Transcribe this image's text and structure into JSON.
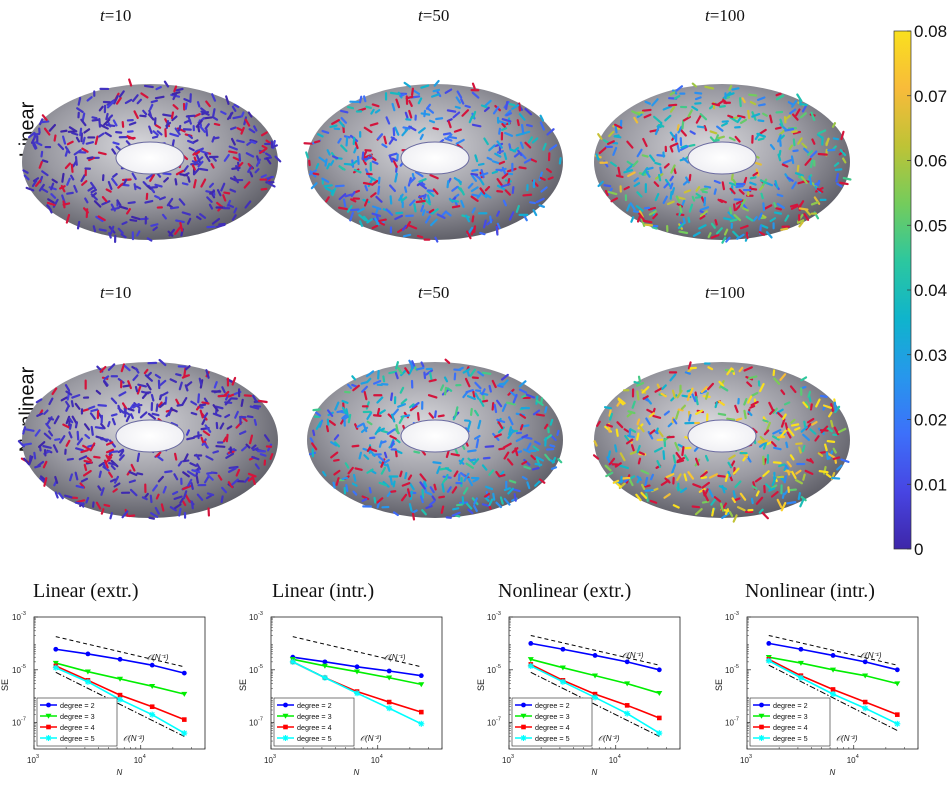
{
  "top_titles": [
    {
      "var": "t",
      "eq": "=",
      "val": "10"
    },
    {
      "var": "t",
      "eq": "=",
      "val": "50"
    },
    {
      "var": "t",
      "eq": "=",
      "val": "100"
    },
    {
      "var": "t",
      "eq": "=",
      "val": "10"
    },
    {
      "var": "t",
      "eq": "=",
      "val": "50"
    },
    {
      "var": "t",
      "eq": "=",
      "val": "100"
    }
  ],
  "row_labels": [
    "Linear",
    "Nonlinear"
  ],
  "colorbar": {
    "ticks": [
      "0",
      "0.01",
      "0.02",
      "0.03",
      "0.04",
      "0.05",
      "0.06",
      "0.07",
      "0.08"
    ],
    "range": [
      0,
      0.08
    ],
    "colormap": [
      "#3e26a8",
      "#4745e3",
      "#3d70fa",
      "#2797ec",
      "#0fb4cc",
      "#2cc79f",
      "#74cc5c",
      "#bec336",
      "#f8bb3a",
      "#f9e01e"
    ]
  },
  "tori": [
    {
      "panel": "Linear t=10",
      "level": 0.005
    },
    {
      "panel": "Linear t=50",
      "level": 0.03
    },
    {
      "panel": "Linear t=100",
      "level": 0.05
    },
    {
      "panel": "Nonlinear t=10",
      "level": 0.005
    },
    {
      "panel": "Nonlinear t=50",
      "level": 0.035
    },
    {
      "panel": "Nonlinear t=100",
      "level": 0.065
    }
  ],
  "chart_data": [
    {
      "type": "line",
      "title": "Linear (extr.)",
      "xlabel": "N",
      "ylabel": "SE",
      "xscale": "log",
      "yscale": "log",
      "xlim": [
        1000,
        40000
      ],
      "ylim": [
        1e-08,
        0.001
      ],
      "xticks": [
        "10",
        "10"
      ],
      "xtick_exp": [
        "3",
        "4"
      ],
      "yticks": [
        "10",
        "10",
        "10"
      ],
      "ytick_exp": [
        "-3",
        "-5",
        "-7"
      ],
      "x": [
        1600,
        3200,
        6400,
        12800,
        25600
      ],
      "series": [
        {
          "name": "degree = 2",
          "values": [
            6e-05,
            4e-05,
            2.5e-05,
            1.5e-05,
            7.5e-06
          ],
          "color": "#0000ff",
          "marker": "circle"
        },
        {
          "name": "degree = 3",
          "values": [
            1.8e-05,
            8.5e-06,
            4.5e-06,
            2.4e-06,
            1.2e-06
          ],
          "color": "#00ee00",
          "marker": "triangle-down"
        },
        {
          "name": "degree = 4",
          "values": [
            1.4e-05,
            4e-06,
            1.1e-06,
            4e-07,
            1.3e-07
          ],
          "color": "#ff0000",
          "marker": "square"
        },
        {
          "name": "degree = 5",
          "values": [
            1.2e-05,
            3.5e-06,
            7.5e-07,
            2e-07,
            4e-08
          ],
          "color": "#00ffff",
          "marker": "asterisk"
        }
      ],
      "reference": [
        {
          "label": "𝒪(N⁻¹)",
          "style": "dashed",
          "points": [
            [
              1600,
              0.00018
            ],
            [
              25600,
              1.3e-05
            ]
          ]
        },
        {
          "label": "𝒪(N⁻²)",
          "style": "dashdot",
          "points": [
            [
              1600,
              8e-06
            ],
            [
              25600,
              3e-08
            ]
          ]
        }
      ],
      "legend": "bottom-left"
    },
    {
      "type": "line",
      "title": "Linear (intr.)",
      "xlabel": "N",
      "ylabel": "SE",
      "xscale": "log",
      "yscale": "log",
      "xlim": [
        1000,
        40000
      ],
      "ylim": [
        1e-08,
        0.001
      ],
      "xticks": [
        "10",
        "10"
      ],
      "xtick_exp": [
        "3",
        "4"
      ],
      "yticks": [
        "10",
        "10",
        "10"
      ],
      "ytick_exp": [
        "-3",
        "-5",
        "-7"
      ],
      "x": [
        1600,
        3200,
        6400,
        12800,
        25600
      ],
      "series": [
        {
          "name": "degree = 2",
          "values": [
            3e-05,
            2e-05,
            1.3e-05,
            9e-06,
            6e-06
          ],
          "color": "#0000ff",
          "marker": "circle"
        },
        {
          "name": "degree = 3",
          "values": [
            2.5e-05,
            1.4e-05,
            8.5e-06,
            5e-06,
            2.8e-06
          ],
          "color": "#00ee00",
          "marker": "triangle-down"
        },
        {
          "name": "degree = 4",
          "values": [
            2e-05,
            5e-06,
            1.5e-06,
            6e-07,
            2.5e-07
          ],
          "color": "#ff0000",
          "marker": "square"
        },
        {
          "name": "degree = 5",
          "values": [
            2e-05,
            5e-06,
            1.3e-06,
            3.5e-07,
            9e-08
          ],
          "color": "#00ffff",
          "marker": "asterisk"
        }
      ],
      "reference": [
        {
          "label": "𝒪(N⁻¹)",
          "style": "dashed",
          "points": [
            [
              1600,
              0.00018
            ],
            [
              25600,
              1.3e-05
            ]
          ]
        },
        {
          "label": "𝒪(N⁻²)",
          "style": "dashdot",
          "points": [
            [
              1600,
              2e-05
            ],
            [
              25600,
              9e-08
            ]
          ]
        }
      ],
      "legend": "bottom-left"
    },
    {
      "type": "line",
      "title": "Nonlinear (extr.)",
      "xlabel": "N",
      "ylabel": "SE",
      "xscale": "log",
      "yscale": "log",
      "xlim": [
        1000,
        40000
      ],
      "ylim": [
        1e-08,
        0.001
      ],
      "xticks": [
        "10",
        "10"
      ],
      "xtick_exp": [
        "3",
        "4"
      ],
      "yticks": [
        "10",
        "10",
        "10"
      ],
      "ytick_exp": [
        "-3",
        "-5",
        "-7"
      ],
      "x": [
        1600,
        3200,
        6400,
        12800,
        25600
      ],
      "series": [
        {
          "name": "degree = 2",
          "values": [
            0.0001,
            6e-05,
            3.5e-05,
            2e-05,
            1e-05
          ],
          "color": "#0000ff",
          "marker": "circle"
        },
        {
          "name": "degree = 3",
          "values": [
            2.5e-05,
            1.2e-05,
            6e-06,
            3e-06,
            1.3e-06
          ],
          "color": "#00ee00",
          "marker": "triangle-down"
        },
        {
          "name": "degree = 4",
          "values": [
            1.6e-05,
            4e-06,
            1.2e-06,
            4.5e-07,
            1.5e-07
          ],
          "color": "#ff0000",
          "marker": "square"
        },
        {
          "name": "degree = 5",
          "values": [
            1.4e-05,
            3.5e-06,
            9e-07,
            2.2e-07,
            4e-08
          ],
          "color": "#00ffff",
          "marker": "asterisk"
        }
      ],
      "reference": [
        {
          "label": "𝒪(N⁻¹)",
          "style": "dashed",
          "points": [
            [
              1600,
              0.0002
            ],
            [
              25600,
              1.5e-05
            ]
          ]
        },
        {
          "label": "𝒪(N⁻²)",
          "style": "dashdot",
          "points": [
            [
              1600,
              8e-06
            ],
            [
              25600,
              3e-08
            ]
          ]
        }
      ],
      "legend": "bottom-left"
    },
    {
      "type": "line",
      "title": "Nonlinear (intr.)",
      "xlabel": "N",
      "ylabel": "SE",
      "xscale": "log",
      "yscale": "log",
      "xlim": [
        1000,
        40000
      ],
      "ylim": [
        1e-08,
        0.001
      ],
      "xticks": [
        "10",
        "10"
      ],
      "xtick_exp": [
        "3",
        "4"
      ],
      "yticks": [
        "10",
        "10",
        "10"
      ],
      "ytick_exp": [
        "-3",
        "-5",
        "-7"
      ],
      "x": [
        1600,
        3200,
        6400,
        12800,
        25600
      ],
      "series": [
        {
          "name": "degree = 2",
          "values": [
            0.0001,
            6e-05,
            3.5e-05,
            2e-05,
            1e-05
          ],
          "color": "#0000ff",
          "marker": "circle"
        },
        {
          "name": "degree = 3",
          "values": [
            3e-05,
            1.8e-05,
            1e-05,
            6e-06,
            3e-06
          ],
          "color": "#00ee00",
          "marker": "triangle-down"
        },
        {
          "name": "degree = 4",
          "values": [
            2.5e-05,
            6e-06,
            1.8e-06,
            6e-07,
            2e-07
          ],
          "color": "#ff0000",
          "marker": "square"
        },
        {
          "name": "degree = 5",
          "values": [
            2.2e-05,
            5e-06,
            1.2e-06,
            3.5e-07,
            9e-08
          ],
          "color": "#00ffff",
          "marker": "asterisk"
        }
      ],
      "reference": [
        {
          "label": "𝒪(N⁻¹)",
          "style": "dashed",
          "points": [
            [
              1600,
              0.0002
            ],
            [
              25600,
              1.5e-05
            ]
          ]
        },
        {
          "label": "𝒪(N⁻²)",
          "style": "dashdot",
          "points": [
            [
              1600,
              1.5e-05
            ],
            [
              25600,
              5e-08
            ]
          ]
        }
      ],
      "legend": "bottom-left"
    }
  ]
}
